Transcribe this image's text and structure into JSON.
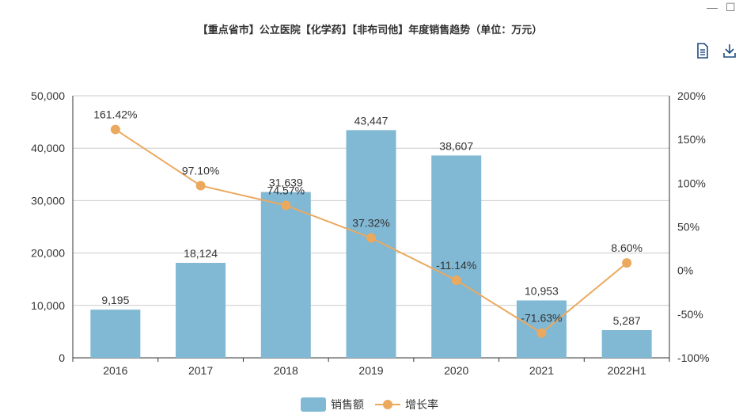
{
  "chart_data": {
    "type": "bar",
    "title": "【重点省市】公立医院【化学药】【非布司他】年度销售趋势（单位：万元）",
    "categories": [
      "2016",
      "2017",
      "2018",
      "2019",
      "2020",
      "2021",
      "2022H1"
    ],
    "series": [
      {
        "name": "销售额",
        "type": "bar",
        "axis": "left",
        "color": "#81b8d4",
        "values": [
          9195,
          18124,
          31639,
          43447,
          38607,
          10953,
          5287
        ],
        "labels": [
          "9,195",
          "18,124",
          "31,639",
          "43,447",
          "38,607",
          "10,953",
          "5,287"
        ]
      },
      {
        "name": "增长率",
        "type": "line",
        "axis": "right",
        "color": "#eba95e",
        "values": [
          161.42,
          97.1,
          74.57,
          37.32,
          -11.14,
          -71.63,
          8.6
        ],
        "labels": [
          "161.42%",
          "97.10%",
          "74.57%",
          "37.32%",
          "-11.14%",
          "-71.63%",
          "8.60%"
        ]
      }
    ],
    "y_left": {
      "min": 0,
      "max": 50000,
      "ticks": [
        "0",
        "10,000",
        "20,000",
        "30,000",
        "40,000",
        "50,000"
      ]
    },
    "y_right": {
      "min": -100,
      "max": 200,
      "ticks": [
        "-100%",
        "-50%",
        "0%",
        "50%",
        "100%",
        "150%",
        "200%"
      ]
    },
    "grid": true,
    "legend_position": "bottom-center"
  },
  "toolbar": {
    "minimize_icon": "minimize-icon",
    "maximize_icon": "maximize-icon",
    "data_view_icon": "document-icon",
    "download_icon": "download-icon"
  }
}
